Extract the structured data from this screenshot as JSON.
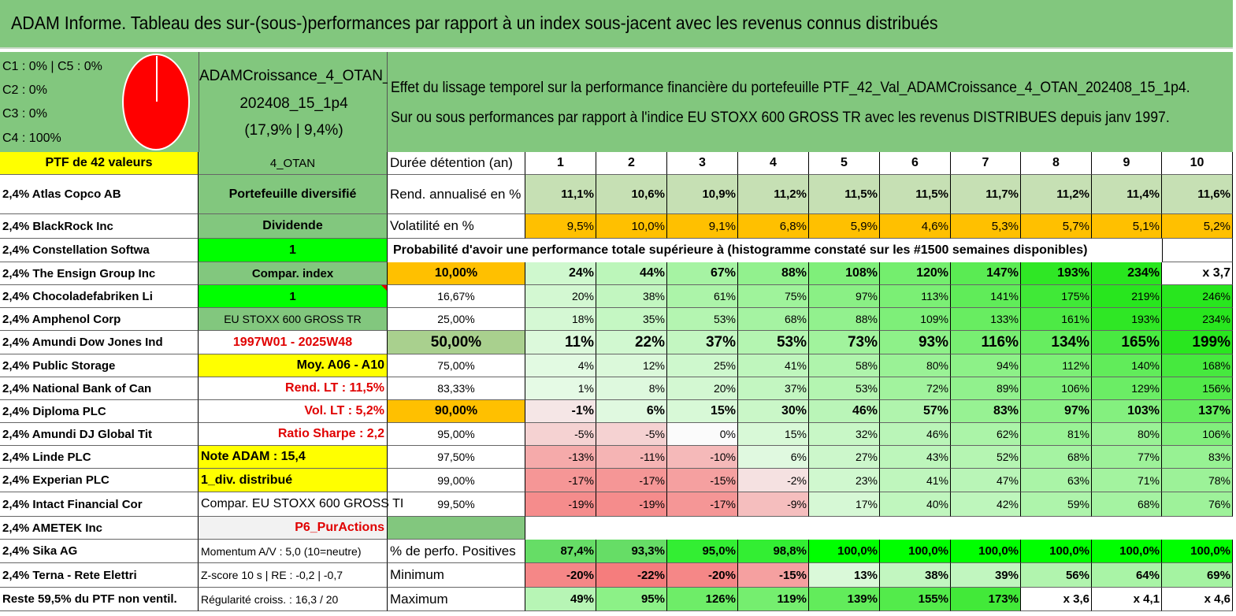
{
  "title": "ADAM Informe. Tableau des sur-(sous-)performances par rapport à un index sous-jacent avec les revenus connus distribués",
  "pie_panel": {
    "lines": [
      "C1 : 0% | C5 : 0%",
      "C2 : 0%",
      "C3 : 0%",
      "C4 : 100%"
    ],
    "pie_color": "#ff0000"
  },
  "fund": {
    "line1": "ADAMCroissance_4_OTAN_",
    "line2": "202408_15_1p4",
    "line3": "(17,9% | 9,4%)"
  },
  "description": {
    "line1": "Effet du lissage temporel sur la performance financière du portefeuille PTF_42_Val_ADAMCroissance_4_OTAN_202408_15_1p4.",
    "line2": "Sur ou sous performances par rapport à l'indice EU STOXX 600 GROSS TR avec les revenus DISTRIBUES depuis janv 1997."
  },
  "header": {
    "portfolio_count": "PTF de 42 valeurs",
    "code": "4_OTAN",
    "duration_label": "Durée détention (an)",
    "years": [
      "1",
      "2",
      "3",
      "4",
      "5",
      "6",
      "7",
      "8",
      "9",
      "10"
    ]
  },
  "holdings": [
    "2,4% Atlas Copco AB",
    "2,4% BlackRock Inc",
    "2,4% Constellation Softwa",
    "2,4% The Ensign Group Inc",
    "2,4% Chocoladefabriken Li",
    "2,4% Amphenol Corp",
    "2,4% Amundi Dow Jones Ind",
    "2,4% Public Storage",
    "2,4% National Bank of Can",
    "2,4% Diploma PLC",
    "2,4% Amundi DJ Global Tit",
    "2,4% Linde PLC",
    "2,4% Experian PLC",
    "2,4% Intact Financial Cor",
    "2,4% AMETEK Inc",
    "2,4% Sika AG",
    "2,4% Terna - Rete Elettri",
    "Reste 59,5% du PTF non ventil."
  ],
  "info": [
    "Portefeuille diversifié",
    "Dividende",
    "1",
    "Compar. index",
    "1",
    "EU STOXX 600 GROSS TR",
    "1997W01 - 2025W48",
    "Moy. A06 - A10",
    "Rend. LT : 11,5%",
    "Vol. LT : 5,2%",
    "Ratio Sharpe : 2,2",
    "Note ADAM : 15,4",
    "1_div. distribué",
    "Compar. EU STOXX 600 GROSS TI",
    "P6_PurActions",
    "Momentum A/V : 5,0 (10=neutre)",
    "Z-score 10 s | RE : -0,2 | -0,7",
    "Régularité croiss. : 16,3 / 20"
  ],
  "returns": {
    "label": "Rend. annualisé en %",
    "values": [
      "11,1%",
      "10,6%",
      "10,9%",
      "11,2%",
      "11,5%",
      "11,5%",
      "11,7%",
      "11,2%",
      "11,4%",
      "11,6%"
    ]
  },
  "volatility": {
    "label": "Volatilité en %",
    "values": [
      "9,5%",
      "10,0%",
      "9,1%",
      "6,8%",
      "5,9%",
      "4,6%",
      "5,3%",
      "5,7%",
      "5,1%",
      "5,2%"
    ]
  },
  "probability_label": "Probabilité d'avoir une performance totale supérieure à (histogramme constaté sur les #1500 semaines disponibles)",
  "percentile_rows": [
    {
      "p": "10,00%",
      "values": [
        "24%",
        "44%",
        "67%",
        "88%",
        "108%",
        "120%",
        "147%",
        "193%",
        "234%",
        "x 3,7"
      ]
    },
    {
      "p": "16,67%",
      "values": [
        "20%",
        "38%",
        "61%",
        "75%",
        "97%",
        "113%",
        "141%",
        "175%",
        "219%",
        "246%"
      ]
    },
    {
      "p": "25,00%",
      "values": [
        "18%",
        "35%",
        "53%",
        "68%",
        "88%",
        "109%",
        "133%",
        "161%",
        "193%",
        "234%"
      ]
    },
    {
      "p": "50,00%",
      "values": [
        "11%",
        "22%",
        "37%",
        "53%",
        "73%",
        "93%",
        "116%",
        "134%",
        "165%",
        "199%"
      ]
    },
    {
      "p": "75,00%",
      "values": [
        "4%",
        "12%",
        "25%",
        "41%",
        "58%",
        "80%",
        "94%",
        "112%",
        "140%",
        "168%"
      ]
    },
    {
      "p": "83,33%",
      "values": [
        "1%",
        "8%",
        "20%",
        "37%",
        "53%",
        "72%",
        "89%",
        "106%",
        "129%",
        "156%"
      ]
    },
    {
      "p": "90,00%",
      "values": [
        "-1%",
        "6%",
        "15%",
        "30%",
        "46%",
        "57%",
        "83%",
        "97%",
        "103%",
        "137%"
      ]
    },
    {
      "p": "95,00%",
      "values": [
        "-5%",
        "-5%",
        "0%",
        "15%",
        "32%",
        "46%",
        "62%",
        "81%",
        "80%",
        "106%"
      ]
    },
    {
      "p": "97,50%",
      "values": [
        "-13%",
        "-11%",
        "-10%",
        "6%",
        "27%",
        "43%",
        "52%",
        "68%",
        "77%",
        "83%"
      ]
    },
    {
      "p": "99,00%",
      "values": [
        "-17%",
        "-17%",
        "-15%",
        "-2%",
        "23%",
        "41%",
        "47%",
        "63%",
        "71%",
        "78%"
      ]
    },
    {
      "p": "99,50%",
      "values": [
        "-19%",
        "-19%",
        "-17%",
        "-9%",
        "17%",
        "40%",
        "42%",
        "59%",
        "68%",
        "76%"
      ]
    }
  ],
  "positives": {
    "label": "% de perfo. Positives",
    "values": [
      "87,4%",
      "93,3%",
      "95,0%",
      "98,8%",
      "100,0%",
      "100,0%",
      "100,0%",
      "100,0%",
      "100,0%",
      "100,0%"
    ]
  },
  "minimum": {
    "label": "Minimum",
    "values": [
      "-20%",
      "-22%",
      "-20%",
      "-15%",
      "13%",
      "38%",
      "39%",
      "56%",
      "64%",
      "69%"
    ]
  },
  "maximum": {
    "label": "Maximum",
    "values": [
      "49%",
      "95%",
      "126%",
      "119%",
      "139%",
      "155%",
      "173%",
      "x 3,6",
      "x 4,1",
      "x 4,6"
    ]
  },
  "colors": {
    "header_green": "#82c77e",
    "bright_green": "#00ff00",
    "yellow": "#ffff00",
    "orange": "#ffc000",
    "red_text": "#e00000"
  }
}
